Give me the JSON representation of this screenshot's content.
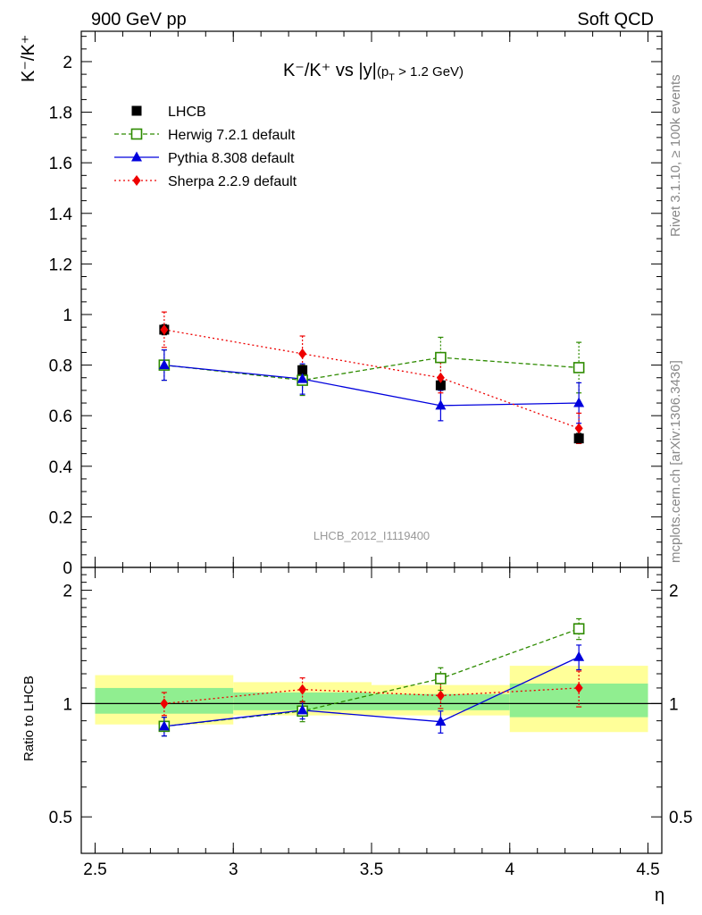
{
  "header": {
    "left": "900 GeV pp",
    "right": "Soft QCD"
  },
  "side_labels": {
    "rivet": "Rivet 3.1.10, ≥ 100k events",
    "mcplots": "mcplots.cern.ch [arXiv:1306.3436]"
  },
  "watermark": "LHCB_2012_I1119400",
  "plot_title": {
    "main": "K⁻/K⁺ vs |y|",
    "sub_pre": "(p",
    "sub_sub": "T",
    "sub_post": " > 1.2 GeV)"
  },
  "colors": {
    "herwig": "#2e8b00",
    "pythia": "#0000dd",
    "sherpa": "#ee0000",
    "band_outer": "#ffff99",
    "band_inner": "#90ee90"
  },
  "chart_data": [
    {
      "type": "line",
      "panel": "main",
      "ylabel": "K⁻/K⁺",
      "xlabel": "",
      "ylim": [
        0,
        2.12
      ],
      "xlim": [
        2.45,
        4.55
      ],
      "yticks": [
        0,
        0.2,
        0.4,
        0.6,
        0.8,
        1,
        1.2,
        1.4,
        1.6,
        1.8,
        2
      ],
      "ytick_labels": [
        "0",
        "0.2",
        "0.4",
        "0.6",
        "0.8",
        "1",
        "1.2",
        "1.4",
        "1.6",
        "1.8",
        "2"
      ],
      "legend_position": "top-left",
      "x": [
        2.75,
        3.25,
        3.75,
        4.25
      ],
      "series": [
        {
          "key": "lhcb",
          "name": "LHCB",
          "marker": "square-filled",
          "values": [
            0.94,
            0.78,
            0.72,
            0.51
          ],
          "err": [
            0.02,
            0.02,
            0.02,
            0.02
          ],
          "xerr": [
            0.25,
            0.25,
            0.25,
            0.25
          ]
        },
        {
          "key": "herwig",
          "name": "Herwig 7.2.1 default",
          "marker": "square-open",
          "style": "dashed",
          "values": [
            0.8,
            0.74,
            0.83,
            0.79
          ],
          "err": [
            0.06,
            0.06,
            0.08,
            0.1
          ]
        },
        {
          "key": "pythia",
          "name": "Pythia 8.308 default",
          "marker": "triangle",
          "style": "solid",
          "values": [
            0.8,
            0.745,
            0.64,
            0.65
          ],
          "err": [
            0.06,
            0.06,
            0.06,
            0.08
          ]
        },
        {
          "key": "sherpa",
          "name": "Sherpa 2.2.9 default",
          "marker": "diamond",
          "style": "dotted",
          "values": [
            0.94,
            0.845,
            0.75,
            0.55
          ],
          "err": [
            0.07,
            0.07,
            0.06,
            0.06
          ]
        }
      ]
    },
    {
      "type": "line",
      "panel": "ratio",
      "ylabel": "Ratio to LHCB",
      "xlabel": "η",
      "yscale": "log",
      "ylim": [
        0.4,
        2.3
      ],
      "xlim": [
        2.45,
        4.55
      ],
      "yticks": [
        0.5,
        1,
        2
      ],
      "ytick_labels": [
        "0.5",
        "1",
        "2"
      ],
      "xticks": [
        2.5,
        3,
        3.5,
        4,
        4.5
      ],
      "xtick_labels": [
        "2.5",
        "3",
        "3.5",
        "4",
        "4.5"
      ],
      "x": [
        2.75,
        3.25,
        3.75,
        4.25
      ],
      "bands": {
        "x_edges": [
          2.5,
          3.0,
          3.5,
          4.0,
          4.5
        ],
        "outer": [
          [
            0.88,
            1.19
          ],
          [
            0.93,
            1.14
          ],
          [
            0.93,
            1.12
          ],
          [
            0.84,
            1.26
          ]
        ],
        "inner": [
          [
            0.94,
            1.1
          ],
          [
            0.96,
            1.07
          ],
          [
            0.96,
            1.06
          ],
          [
            0.92,
            1.13
          ]
        ]
      },
      "series": [
        {
          "key": "herwig",
          "name": "Herwig 7.2.1 default",
          "values": [
            0.87,
            0.955,
            1.165,
            1.58
          ],
          "err": [
            0.05,
            0.06,
            0.08,
            0.1
          ]
        },
        {
          "key": "pythia",
          "name": "Pythia 8.308 default",
          "values": [
            0.87,
            0.96,
            0.895,
            1.33
          ],
          "err": [
            0.05,
            0.05,
            0.06,
            0.1
          ]
        },
        {
          "key": "sherpa",
          "name": "Sherpa 2.2.9 default",
          "values": [
            1.0,
            1.09,
            1.05,
            1.1
          ],
          "err": [
            0.07,
            0.08,
            0.08,
            0.12
          ]
        }
      ]
    }
  ]
}
